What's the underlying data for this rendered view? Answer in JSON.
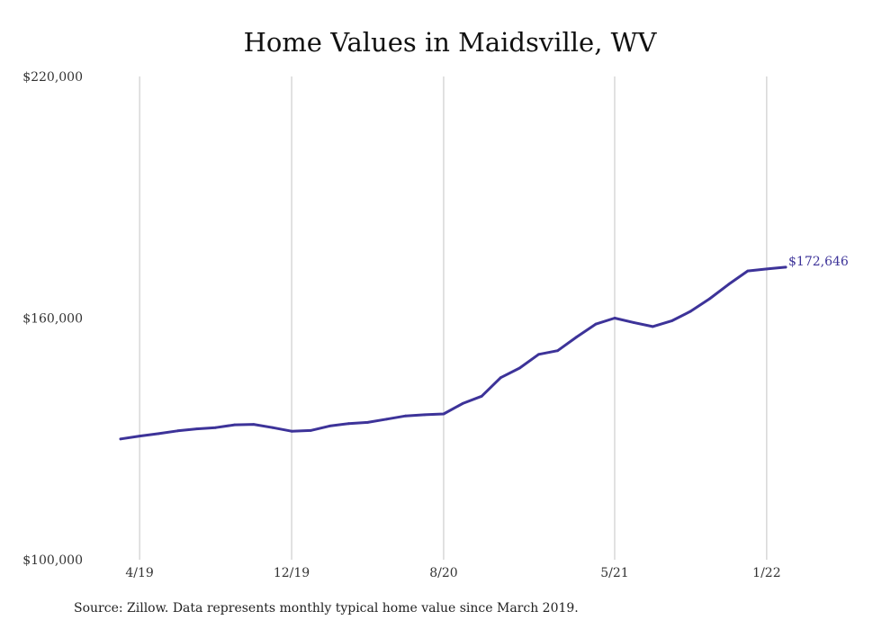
{
  "chart_data": {
    "type": "line",
    "title": "Home Values in Maidsville, WV",
    "source": "Source: Zillow. Data represents monthly typical home value since March 2019.",
    "xlabel": "",
    "ylabel": "",
    "ylim": [
      100000,
      220000
    ],
    "yticks": [
      100000,
      160000,
      220000
    ],
    "ytick_labels": [
      "$100,000",
      "$160,000",
      "$220,000"
    ],
    "xticks": [
      "2019-04",
      "2019-12",
      "2020-08",
      "2021-05",
      "2022-01"
    ],
    "xtick_labels": [
      "4/19",
      "12/19",
      "8/20",
      "5/21",
      "1/22"
    ],
    "xlim": [
      "2019-03",
      "2022-02"
    ],
    "grid": "vertical",
    "line_color": "#3d3399",
    "end_label": "$172,646",
    "series": [
      {
        "name": "",
        "x": [
          "2019-03",
          "2019-04",
          "2019-05",
          "2019-06",
          "2019-07",
          "2019-08",
          "2019-09",
          "2019-10",
          "2019-11",
          "2019-12",
          "2020-01",
          "2020-02",
          "2020-03",
          "2020-04",
          "2020-05",
          "2020-06",
          "2020-07",
          "2020-08",
          "2020-09",
          "2020-10",
          "2020-11",
          "2020-12",
          "2021-01",
          "2021-02",
          "2021-03",
          "2021-04",
          "2021-05",
          "2021-06",
          "2021-07",
          "2021-08",
          "2021-09",
          "2021-10",
          "2021-11",
          "2021-12",
          "2022-01",
          "2022-02"
        ],
        "values": [
          130000,
          130700,
          131300,
          132000,
          132500,
          132800,
          133500,
          133600,
          132800,
          131900,
          132100,
          133200,
          133800,
          134100,
          134900,
          135700,
          136000,
          136200,
          138800,
          140600,
          145200,
          147600,
          151000,
          151900,
          155300,
          158500,
          160000,
          158900,
          157900,
          159300,
          161700,
          164800,
          168400,
          171700,
          172200,
          172646
        ]
      }
    ]
  }
}
